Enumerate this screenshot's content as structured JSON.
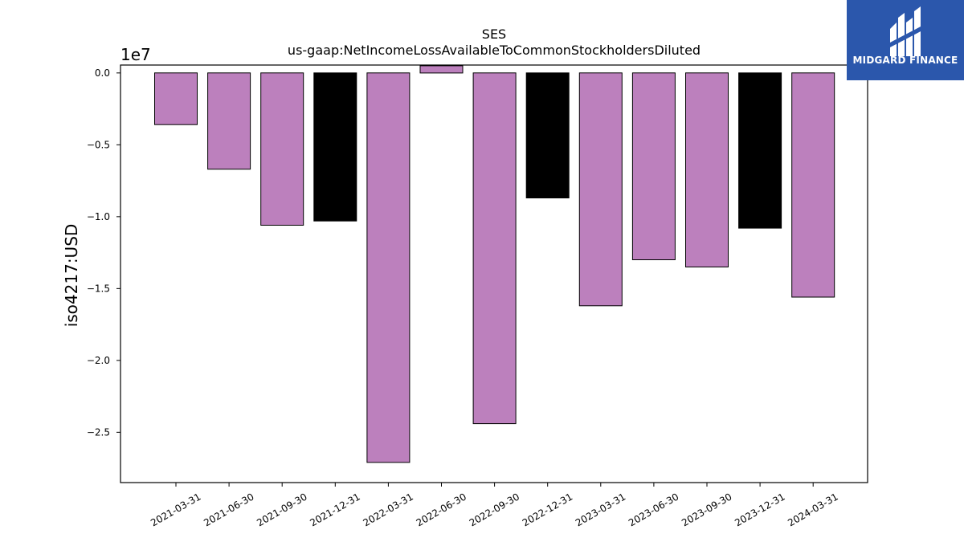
{
  "chart_data": {
    "type": "bar",
    "title": "SES",
    "subtitle": "us-gaap:NetIncomeLossAvailableToCommonStockholdersDiluted",
    "ylabel": "iso4217:USD",
    "offset_label": "1e7",
    "categories": [
      "2021-03-31",
      "2021-06-30",
      "2021-09-30",
      "2021-12-31",
      "2022-03-31",
      "2022-06-30",
      "2022-09-30",
      "2022-12-31",
      "2023-03-31",
      "2023-06-30",
      "2023-09-30",
      "2023-12-31",
      "2024-03-31"
    ],
    "values": [
      -3600000,
      -6700000,
      -10600000,
      -10300000,
      -27100000,
      500000,
      -24400000,
      -8700000,
      -16200000,
      -13000000,
      -13500000,
      -10800000,
      -15600000
    ],
    "colors": [
      "#bc80bd",
      "#bc80bd",
      "#bc80bd",
      "#000000",
      "#bc80bd",
      "#bc80bd",
      "#bc80bd",
      "#000000",
      "#bc80bd",
      "#bc80bd",
      "#bc80bd",
      "#000000",
      "#bc80bd"
    ],
    "ylim": [
      -28500000,
      550000
    ],
    "yticks": [
      0,
      -5000000,
      -10000000,
      -15000000,
      -20000000,
      -25000000
    ],
    "ytick_labels": [
      "0.0",
      "−0.5",
      "−1.0",
      "−1.5",
      "−2.0",
      "−2.5"
    ],
    "grid": false
  },
  "logo": {
    "brand": "MIDGARD FINANCE"
  }
}
